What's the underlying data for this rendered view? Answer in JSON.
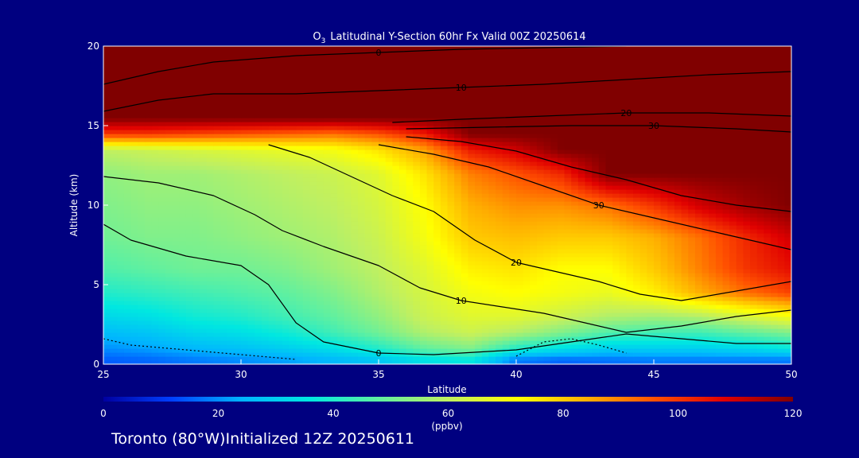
{
  "chart_data": {
    "type": "heatmap",
    "title_main": "Latitudinal Y-Section 60hr  Fx Valid 00Z 20250614",
    "title_species": "O",
    "title_species_sub": "3",
    "xlabel": "Latitude",
    "ylabel": "Altitude (km)",
    "xlim": [
      25,
      50
    ],
    "ylim": [
      0,
      20
    ],
    "x_ticks": [
      25,
      30,
      35,
      40,
      45,
      50
    ],
    "y_ticks": [
      0,
      5,
      10,
      15,
      20
    ],
    "colorbar": {
      "label": "(ppbv)",
      "range": [
        0,
        120
      ],
      "ticks": [
        0,
        20,
        40,
        60,
        80,
        100,
        120
      ],
      "colors": [
        "#0000a0",
        "#0040ff",
        "#00b4ff",
        "#00e8e0",
        "#60f0a0",
        "#c0f060",
        "#ffff00",
        "#ffb000",
        "#ff5000",
        "#e00000",
        "#800000"
      ]
    },
    "heat_rows": [
      {
        "alt": 0.3,
        "values": [
          15,
          16,
          18,
          20,
          22,
          25,
          28,
          34,
          36,
          18,
          16,
          17,
          18,
          18,
          18,
          18
        ]
      },
      {
        "alt": 1.0,
        "values": [
          20,
          22,
          25,
          27,
          30,
          34,
          40,
          48,
          52,
          40,
          34,
          30,
          30,
          30,
          32,
          36
        ]
      },
      {
        "alt": 2.0,
        "values": [
          26,
          28,
          32,
          34,
          38,
          44,
          50,
          58,
          62,
          58,
          52,
          46,
          44,
          44,
          48,
          52
        ]
      },
      {
        "alt": 3.0,
        "values": [
          32,
          34,
          38,
          40,
          44,
          48,
          54,
          62,
          66,
          66,
          62,
          58,
          56,
          58,
          64,
          70
        ]
      },
      {
        "alt": 4.5,
        "values": [
          40,
          42,
          44,
          46,
          48,
          52,
          58,
          64,
          70,
          72,
          70,
          68,
          74,
          84,
          92,
          98
        ]
      },
      {
        "alt": 6.0,
        "values": [
          46,
          48,
          50,
          50,
          52,
          56,
          60,
          66,
          74,
          76,
          72,
          72,
          80,
          90,
          100,
          106
        ]
      },
      {
        "alt": 8.0,
        "values": [
          50,
          52,
          52,
          54,
          56,
          58,
          62,
          70,
          80,
          82,
          80,
          80,
          84,
          92,
          102,
          110
        ]
      },
      {
        "alt": 10.0,
        "values": [
          52,
          54,
          54,
          56,
          58,
          60,
          64,
          72,
          84,
          88,
          88,
          92,
          100,
          110,
          116,
          120
        ]
      },
      {
        "alt": 12.0,
        "values": [
          54,
          56,
          56,
          58,
          60,
          62,
          66,
          76,
          90,
          96,
          102,
          120,
          120,
          120,
          120,
          120
        ]
      },
      {
        "alt": 13.5,
        "values": [
          60,
          62,
          64,
          66,
          68,
          70,
          76,
          86,
          104,
          110,
          120,
          120,
          120,
          120,
          120,
          120
        ]
      },
      {
        "alt": 14.5,
        "values": [
          100,
          100,
          98,
          96,
          94,
          92,
          96,
          104,
          120,
          120,
          120,
          120,
          120,
          120,
          120,
          120
        ]
      },
      {
        "alt": 15.5,
        "values": [
          120,
          120,
          120,
          120,
          120,
          120,
          120,
          120,
          120,
          120,
          120,
          120,
          120,
          120,
          120,
          120
        ]
      },
      {
        "alt": 20.0,
        "values": [
          120,
          120,
          120,
          120,
          120,
          120,
          120,
          120,
          120,
          120,
          120,
          120,
          120,
          120,
          120,
          120
        ]
      }
    ],
    "contours": [
      {
        "label": "0",
        "dashed": false,
        "points": [
          [
            25,
            8.8
          ],
          [
            26,
            7.8
          ],
          [
            28,
            6.8
          ],
          [
            30,
            6.2
          ],
          [
            31,
            5.0
          ],
          [
            32,
            2.6
          ],
          [
            33,
            1.4
          ],
          [
            35,
            0.7
          ],
          [
            37,
            0.6
          ],
          [
            40,
            0.9
          ],
          [
            42,
            1.4
          ],
          [
            44,
            1.9
          ],
          [
            46,
            1.6
          ],
          [
            48,
            1.3
          ],
          [
            50,
            1.3
          ]
        ]
      },
      {
        "label": "10",
        "dashed": false,
        "points": [
          [
            25,
            11.8
          ],
          [
            27,
            11.4
          ],
          [
            29,
            10.6
          ],
          [
            30.5,
            9.4
          ],
          [
            31.5,
            8.4
          ],
          [
            33,
            7.4
          ],
          [
            35,
            6.2
          ],
          [
            36.5,
            4.8
          ],
          [
            38,
            4.0
          ],
          [
            39.5,
            3.6
          ],
          [
            41,
            3.2
          ],
          [
            42.5,
            2.6
          ],
          [
            44,
            2.0
          ],
          [
            46,
            2.4
          ],
          [
            48,
            3.0
          ],
          [
            50,
            3.4
          ]
        ]
      },
      {
        "label": "20",
        "dashed": false,
        "points": [
          [
            31,
            13.8
          ],
          [
            32.5,
            13.0
          ],
          [
            34,
            11.8
          ],
          [
            35.5,
            10.6
          ],
          [
            37,
            9.6
          ],
          [
            38.5,
            7.8
          ],
          [
            40,
            6.4
          ],
          [
            41.5,
            5.8
          ],
          [
            43,
            5.2
          ],
          [
            44.5,
            4.4
          ],
          [
            46,
            4.0
          ],
          [
            48,
            4.6
          ],
          [
            50,
            5.2
          ]
        ]
      },
      {
        "label": "30",
        "dashed": false,
        "points": [
          [
            35,
            13.8
          ],
          [
            37,
            13.2
          ],
          [
            39,
            12.4
          ],
          [
            41,
            11.2
          ],
          [
            43,
            10.0
          ],
          [
            45,
            9.2
          ],
          [
            47,
            8.4
          ],
          [
            49,
            7.6
          ],
          [
            50,
            7.2
          ]
        ]
      },
      {
        "label": "",
        "dashed": false,
        "points": [
          [
            36,
            14.3
          ],
          [
            38,
            14.0
          ],
          [
            40,
            13.4
          ],
          [
            42,
            12.4
          ],
          [
            44,
            11.6
          ],
          [
            46,
            10.6
          ],
          [
            48,
            10.0
          ],
          [
            50,
            9.6
          ]
        ]
      },
      {
        "label": "20",
        "dashed": false,
        "points": [
          [
            35.5,
            15.2
          ],
          [
            38,
            15.4
          ],
          [
            41,
            15.6
          ],
          [
            44,
            15.8
          ],
          [
            47,
            15.8
          ],
          [
            50,
            15.6
          ]
        ]
      },
      {
        "label": "30",
        "dashed": false,
        "points": [
          [
            36,
            14.8
          ],
          [
            39,
            14.9
          ],
          [
            42,
            15.0
          ],
          [
            45,
            15.0
          ],
          [
            48,
            14.8
          ],
          [
            50,
            14.6
          ]
        ]
      },
      {
        "label": "10",
        "dashed": false,
        "points": [
          [
            25,
            15.9
          ],
          [
            27,
            16.6
          ],
          [
            29,
            17.0
          ],
          [
            32,
            17.0
          ],
          [
            35,
            17.2
          ],
          [
            38,
            17.4
          ],
          [
            41,
            17.6
          ],
          [
            44,
            17.9
          ],
          [
            47,
            18.2
          ],
          [
            50,
            18.4
          ]
        ]
      },
      {
        "label": "0",
        "dashed": false,
        "points": [
          [
            25,
            17.6
          ],
          [
            27,
            18.4
          ],
          [
            29,
            19.0
          ],
          [
            32,
            19.4
          ],
          [
            35,
            19.6
          ],
          [
            38,
            19.8
          ],
          [
            41,
            19.9
          ],
          [
            44,
            20.0
          ]
        ]
      },
      {
        "label": "",
        "dashed": true,
        "points": [
          [
            25,
            1.6
          ],
          [
            26,
            1.2
          ],
          [
            28,
            0.9
          ],
          [
            30,
            0.6
          ],
          [
            32,
            0.3
          ]
        ]
      },
      {
        "label": "",
        "dashed": true,
        "points": [
          [
            40,
            0.5
          ],
          [
            41,
            1.4
          ],
          [
            42,
            1.6
          ],
          [
            43,
            1.2
          ],
          [
            44,
            0.7
          ]
        ]
      }
    ]
  },
  "footer": {
    "location": "Toronto (80°W)",
    "initialized": "Initialized 12Z 20250611"
  }
}
